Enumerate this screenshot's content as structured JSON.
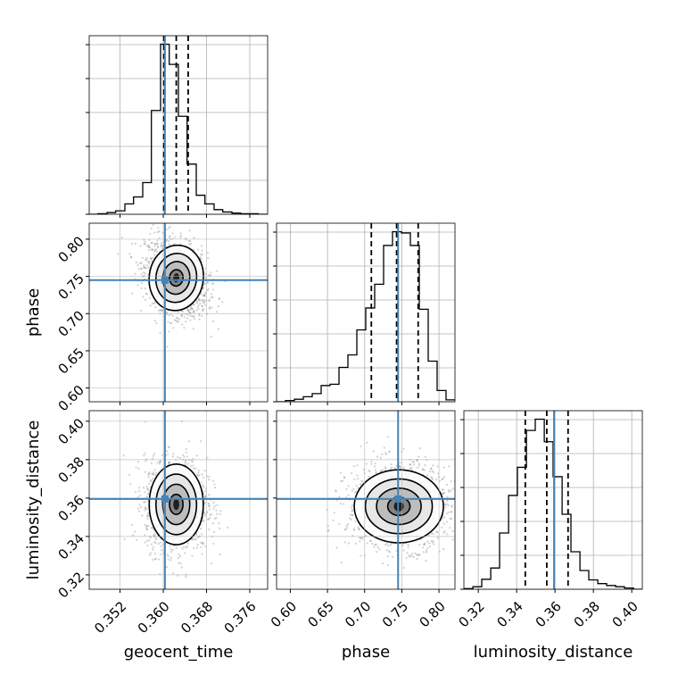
{
  "chart_data": {
    "type": "corner",
    "parameters": [
      "geocent_time",
      "phase",
      "luminosity_distance"
    ],
    "truths": {
      "geocent_time": 0.3603,
      "phase": 0.745,
      "luminosity_distance": 0.3595
    },
    "truth_color": "#4682b4",
    "ranges": {
      "geocent_time": [
        0.3463,
        0.3793
      ],
      "phase": [
        0.5815,
        0.8215
      ],
      "luminosity_distance": [
        0.3125,
        0.4055
      ]
    },
    "ticks": {
      "geocent_time": {
        "values": [
          0.352,
          0.36,
          0.368,
          0.376
        ],
        "labels": [
          "0.352",
          "0.360",
          "0.368",
          "0.376"
        ]
      },
      "phase": {
        "values": [
          0.6,
          0.65,
          0.7,
          0.75,
          0.8
        ],
        "labels": [
          "0.60",
          "0.65",
          "0.70",
          "0.75",
          "0.80"
        ]
      },
      "luminosity_distance": {
        "values": [
          0.32,
          0.34,
          0.36,
          0.38,
          0.4
        ],
        "labels": [
          "0.32",
          "0.34",
          "0.36",
          "0.38",
          "0.40"
        ]
      }
    },
    "axis_labels": {
      "geocent_time": "geocent_time",
      "phase": "phase",
      "luminosity_distance": "luminosity_distance"
    },
    "quantiles": {
      "geocent_time": [
        0.3601,
        0.3624,
        0.3646
      ],
      "phase": [
        0.709,
        0.743,
        0.772
      ],
      "luminosity_distance": [
        0.3445,
        0.3557,
        0.3668
      ]
    },
    "histograms": {
      "geocent_time": {
        "edges": [
          0.3463,
          0.3479,
          0.3496,
          0.3512,
          0.3529,
          0.3545,
          0.3562,
          0.3578,
          0.3595,
          0.3611,
          0.3628,
          0.3644,
          0.3661,
          0.3677,
          0.3694,
          0.371,
          0.3727,
          0.3743,
          0.376,
          0.3776,
          0.3793
        ],
        "counts": [
          0,
          1,
          3,
          6,
          18,
          30,
          55,
          180,
          295,
          260,
          170,
          87,
          33,
          18,
          8,
          4,
          2,
          1,
          1,
          0
        ]
      },
      "phase": {
        "edges": [
          0.5815,
          0.5935,
          0.6055,
          0.6175,
          0.6295,
          0.6415,
          0.6535,
          0.6655,
          0.6775,
          0.6895,
          0.7015,
          0.7135,
          0.7255,
          0.7375,
          0.7495,
          0.7615,
          0.7735,
          0.7855,
          0.7975,
          0.8095,
          0.8215
        ],
        "counts": [
          0,
          2,
          4,
          8,
          13,
          26,
          28,
          55,
          75,
          115,
          150,
          188,
          250,
          272,
          270,
          250,
          148,
          65,
          18,
          3
        ]
      },
      "luminosity_distance": {
        "edges": [
          0.3125,
          0.3172,
          0.3218,
          0.3265,
          0.3311,
          0.3358,
          0.3404,
          0.3451,
          0.3497,
          0.3544,
          0.359,
          0.3637,
          0.3683,
          0.373,
          0.3776,
          0.3823,
          0.3869,
          0.3916,
          0.3962,
          0.4009,
          0.4055
        ],
        "counts": [
          1,
          4,
          16,
          34,
          90,
          150,
          195,
          254,
          272,
          236,
          180,
          120,
          60,
          30,
          15,
          9,
          6,
          4,
          2,
          0
        ]
      }
    },
    "joint": [
      {
        "x": "geocent_time",
        "y": "phase",
        "mean": [
          0.3624,
          0.748
        ],
        "sd": [
          0.0025,
          0.022
        ],
        "rho": -0.3
      },
      {
        "x": "geocent_time",
        "y": "luminosity_distance",
        "mean": [
          0.3624,
          0.3567
        ],
        "sd": [
          0.0025,
          0.0105
        ],
        "rho": 0.0
      },
      {
        "x": "phase",
        "y": "luminosity_distance",
        "mean": [
          0.746,
          0.3557
        ],
        "sd": [
          0.03,
          0.0095
        ],
        "rho": 0.0
      }
    ],
    "contour_levels_sigma": [
      0.5,
      1.0,
      1.5,
      2.0
    ],
    "grid": true
  }
}
